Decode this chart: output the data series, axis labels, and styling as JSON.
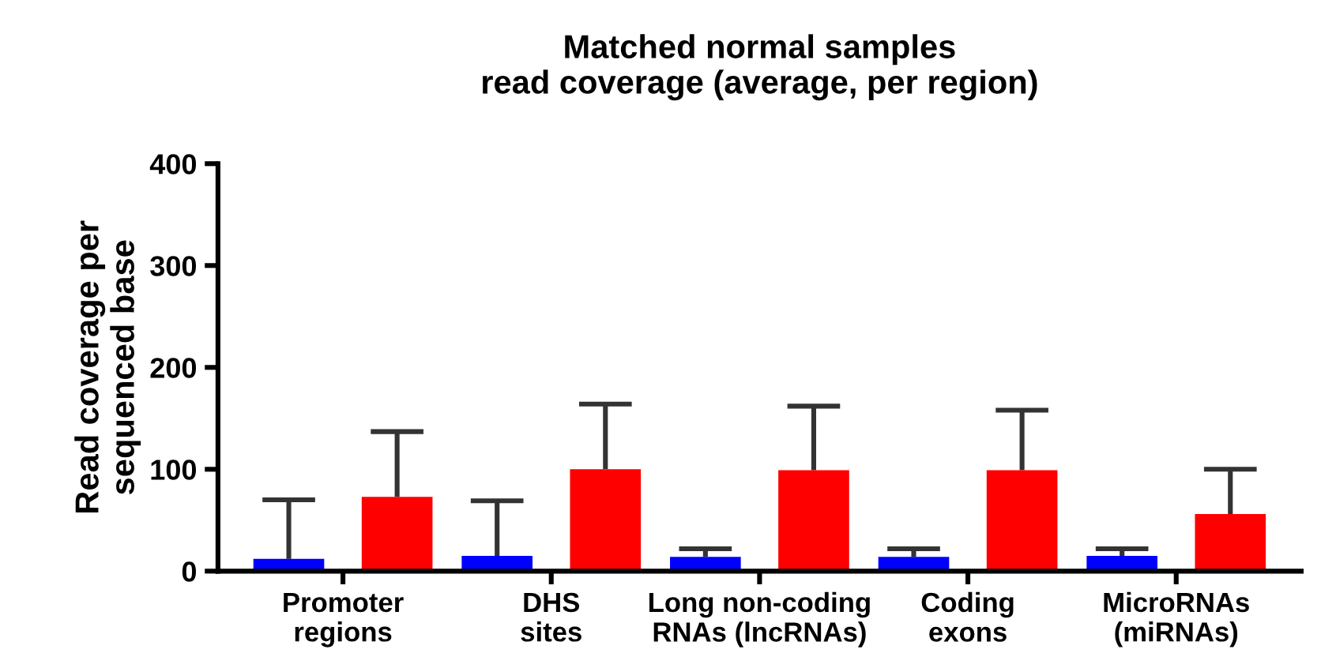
{
  "chart_data": {
    "type": "bar",
    "title": "Matched normal samples\nread coverage (average, per region)",
    "ylabel": "Read coverage per\nsequenced base",
    "categories": [
      "Promoter\nregions",
      "DHS\nsites",
      "Long non-coding\nRNAs (lncRNAs)",
      "Coding\nexons",
      "MicroRNAs\n(miRNAs)"
    ],
    "series": [
      {
        "color": "#0000ff",
        "values": [
          12,
          15,
          14,
          14,
          15
        ],
        "errors": [
          [
            12,
            70
          ],
          [
            15,
            69
          ],
          [
            14,
            22
          ],
          [
            14,
            22
          ],
          [
            15,
            22
          ]
        ]
      },
      {
        "color": "#ff0000",
        "values": [
          73,
          100,
          99,
          99,
          56
        ],
        "errors": [
          [
            73,
            137
          ],
          [
            100,
            164
          ],
          [
            99,
            162
          ],
          [
            99,
            158
          ],
          [
            56,
            100
          ]
        ]
      }
    ],
    "ylim": [
      0,
      400
    ],
    "yticks": [
      0,
      100,
      200,
      300,
      400
    ],
    "grid": false,
    "legend": false
  }
}
